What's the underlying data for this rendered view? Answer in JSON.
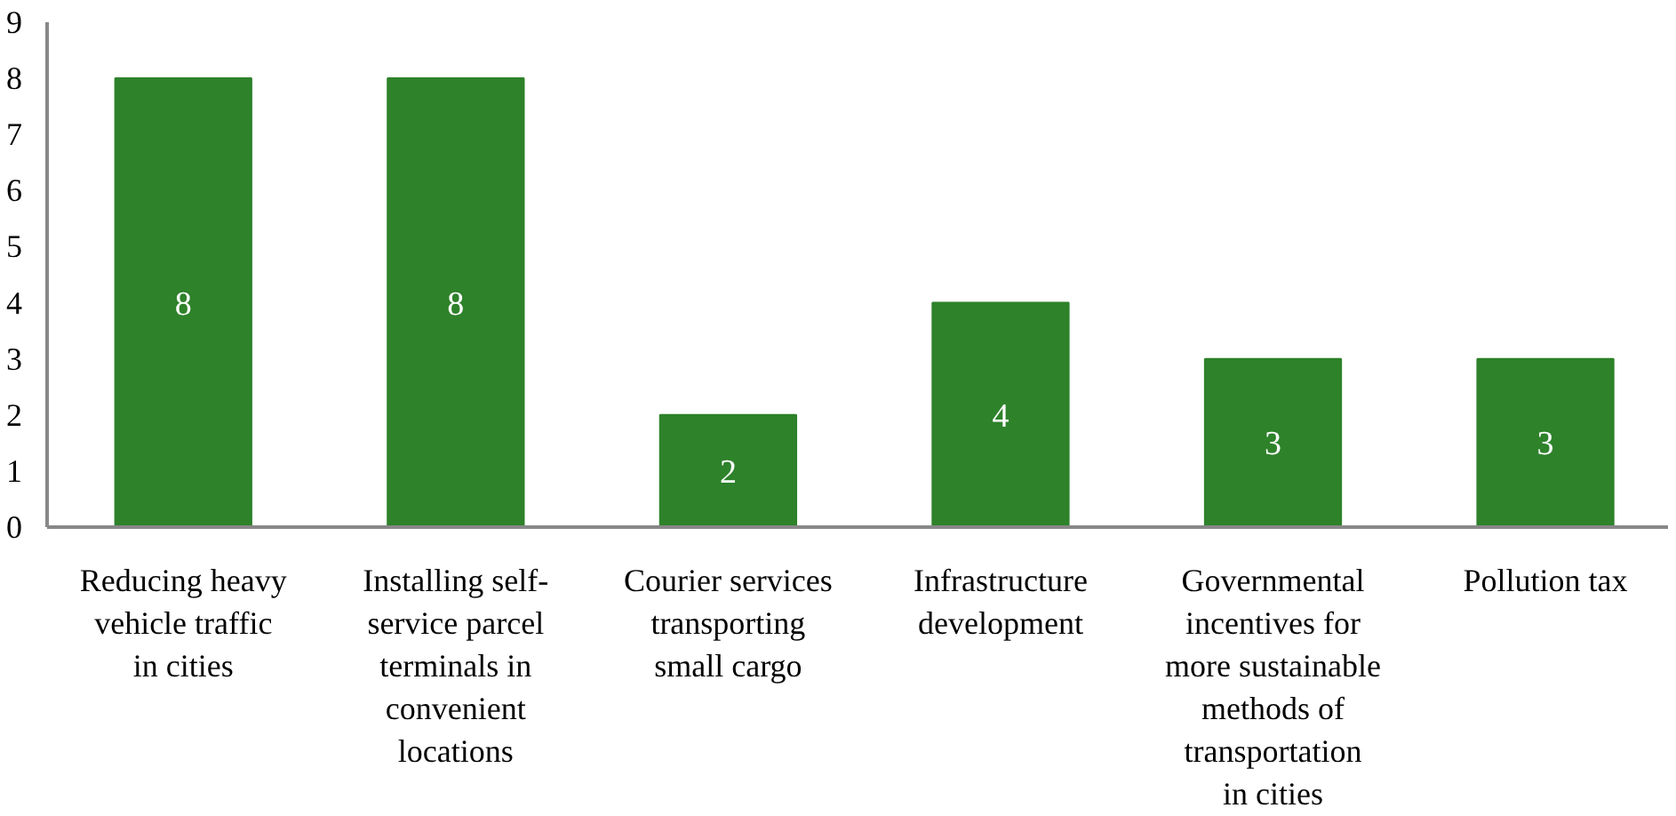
{
  "chart_data": {
    "type": "bar",
    "categories": [
      "Reducing heavy vehicle traffic in cities",
      "Installing self-service parcel terminals in convenient locations",
      "Courier services transporting small cargo",
      "Infrastructure development",
      "Governmental incentives for more sustainable methods of transportation in cities",
      "Pollution tax"
    ],
    "values": [
      8,
      8,
      2,
      4,
      3,
      3
    ],
    "color": "#2e822a",
    "ylim": [
      0,
      9
    ],
    "yticks": [
      0,
      1,
      2,
      3,
      4,
      5,
      6,
      7,
      8,
      9
    ],
    "grid": false,
    "data_labels": true
  }
}
